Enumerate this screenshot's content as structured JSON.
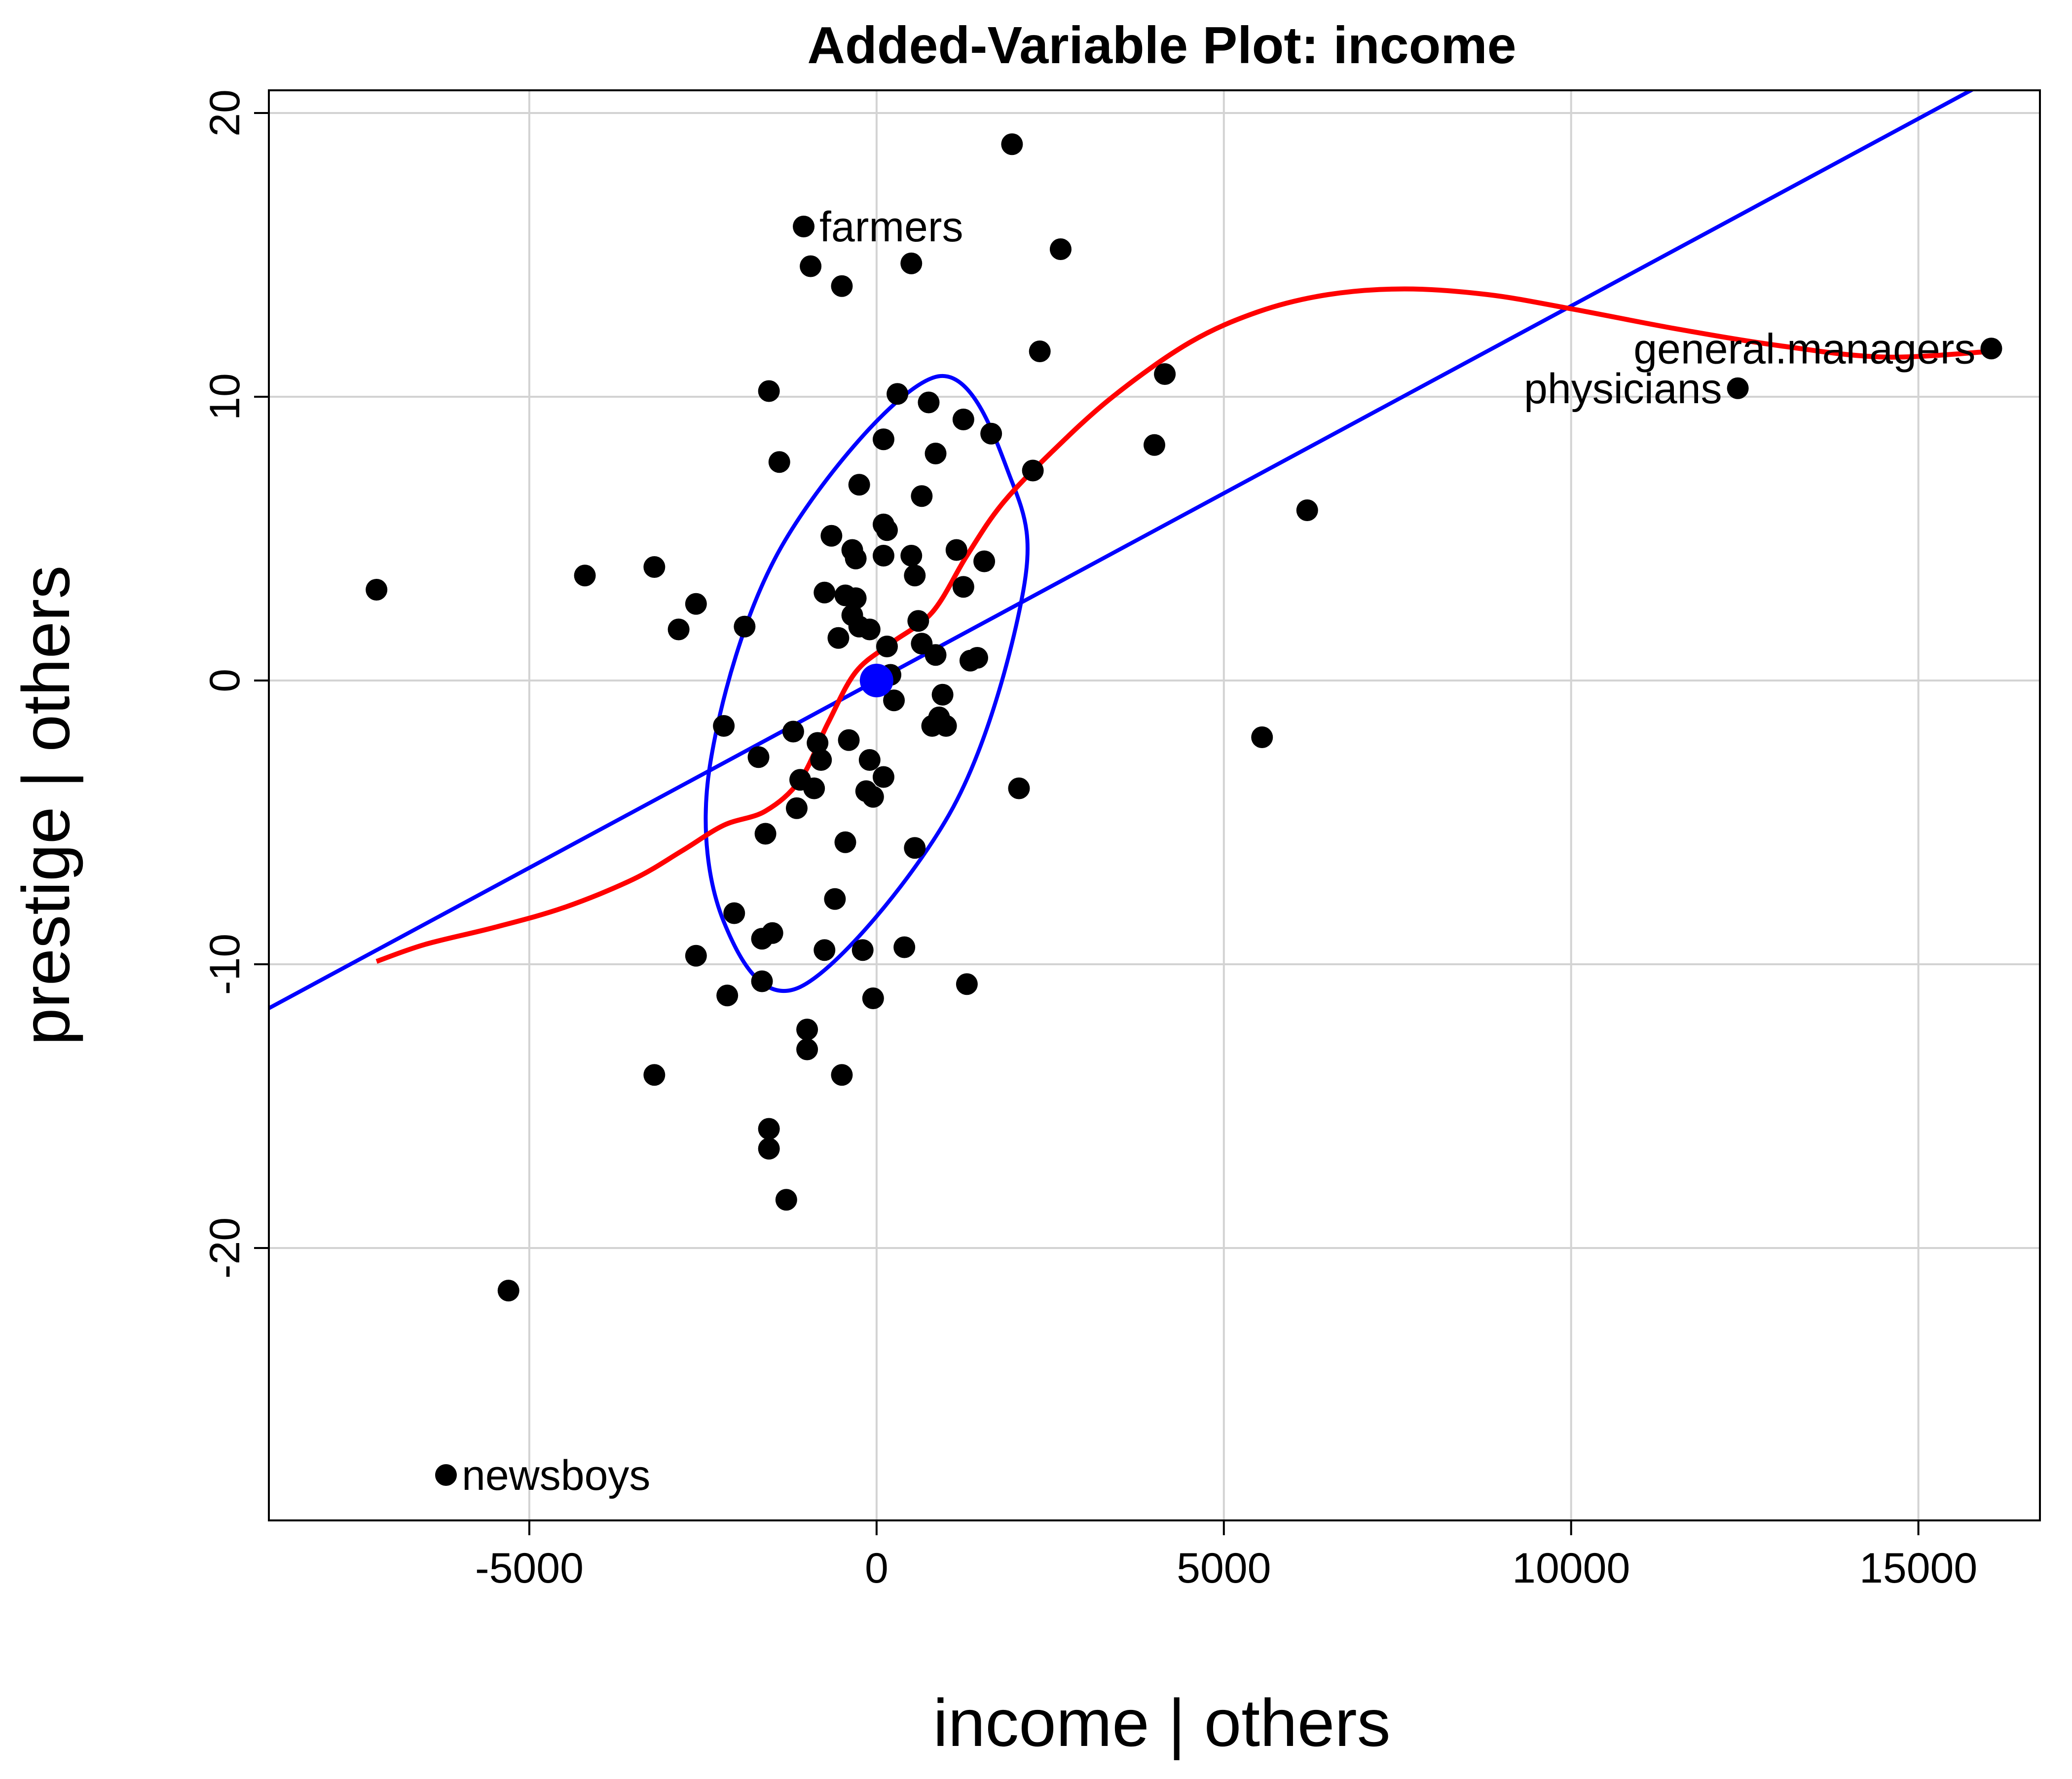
{
  "chart_data": {
    "type": "scatter",
    "title": "Added-Variable Plot: income",
    "xlabel": "income | others",
    "ylabel": "prestige  | others",
    "xlim": [
      -8750,
      16750
    ],
    "ylim": [
      -29.6,
      20.8
    ],
    "xticks": [
      -5000,
      0,
      5000,
      10000,
      15000
    ],
    "xtick_labels": [
      "-5000",
      "0",
      "5000",
      "10000",
      "15000"
    ],
    "yticks": [
      -20,
      -10,
      0,
      10,
      20
    ],
    "ytick_labels": [
      "-20",
      "-10",
      "0",
      "10",
      "20"
    ],
    "grid": true,
    "legend": "none",
    "colors": {
      "points": "#000000",
      "regression_line": "#0000ff",
      "smoother": "#ff0000",
      "ellipse": "#0000ff",
      "center": "#0000ff",
      "grid": "#d3d3d3"
    },
    "points": [
      {
        "x": -7200,
        "y": 3.2
      },
      {
        "x": -6200,
        "y": -28.0,
        "label": "newsboys"
      },
      {
        "x": -5300,
        "y": -21.5
      },
      {
        "x": -4200,
        "y": 3.7
      },
      {
        "x": -3200,
        "y": 4.0
      },
      {
        "x": -3200,
        "y": -13.9
      },
      {
        "x": -2850,
        "y": 1.8
      },
      {
        "x": -2600,
        "y": 2.7
      },
      {
        "x": -2600,
        "y": -9.7
      },
      {
        "x": -2200,
        "y": -1.6
      },
      {
        "x": -2150,
        "y": -11.1
      },
      {
        "x": -2050,
        "y": -8.2
      },
      {
        "x": -1900,
        "y": 1.9
      },
      {
        "x": -1700,
        "y": -2.7
      },
      {
        "x": -1650,
        "y": -9.1
      },
      {
        "x": -1650,
        "y": -10.6
      },
      {
        "x": -1600,
        "y": -5.4
      },
      {
        "x": -1550,
        "y": 10.2
      },
      {
        "x": -1550,
        "y": -15.8
      },
      {
        "x": -1550,
        "y": -16.5
      },
      {
        "x": -1500,
        "y": -8.9
      },
      {
        "x": -1400,
        "y": 7.7
      },
      {
        "x": -1300,
        "y": -18.3
      },
      {
        "x": -1200,
        "y": -1.8
      },
      {
        "x": -1150,
        "y": -4.5
      },
      {
        "x": -1100,
        "y": -3.5
      },
      {
        "x": -1050,
        "y": 16.0,
        "label": "farmers"
      },
      {
        "x": -1000,
        "y": -12.3
      },
      {
        "x": -1000,
        "y": -13.0
      },
      {
        "x": -950,
        "y": 14.6
      },
      {
        "x": -900,
        "y": -3.8
      },
      {
        "x": -850,
        "y": -2.2
      },
      {
        "x": -800,
        "y": -2.8
      },
      {
        "x": -750,
        "y": 3.1
      },
      {
        "x": -750,
        "y": -9.5
      },
      {
        "x": -650,
        "y": 5.1
      },
      {
        "x": -600,
        "y": -7.7
      },
      {
        "x": -550,
        "y": 1.5
      },
      {
        "x": -500,
        "y": 13.9
      },
      {
        "x": -500,
        "y": -13.9
      },
      {
        "x": -450,
        "y": -5.7
      },
      {
        "x": -450,
        "y": 3.0
      },
      {
        "x": -400,
        "y": -2.1
      },
      {
        "x": -350,
        "y": 4.6
      },
      {
        "x": -350,
        "y": 2.3
      },
      {
        "x": -300,
        "y": 4.3
      },
      {
        "x": -300,
        "y": 2.9
      },
      {
        "x": -250,
        "y": 6.9
      },
      {
        "x": -250,
        "y": 1.9
      },
      {
        "x": -200,
        "y": -9.5
      },
      {
        "x": -150,
        "y": -3.9
      },
      {
        "x": -100,
        "y": -2.8
      },
      {
        "x": -100,
        "y": 1.8
      },
      {
        "x": -50,
        "y": -11.2
      },
      {
        "x": -50,
        "y": -4.1
      },
      {
        "x": 100,
        "y": 8.5
      },
      {
        "x": 100,
        "y": 5.5
      },
      {
        "x": 100,
        "y": 4.4
      },
      {
        "x": 100,
        "y": -3.4
      },
      {
        "x": 150,
        "y": 5.3
      },
      {
        "x": 150,
        "y": 1.2
      },
      {
        "x": 200,
        "y": 0.2
      },
      {
        "x": 250,
        "y": -0.7
      },
      {
        "x": 300,
        "y": 10.1
      },
      {
        "x": 400,
        "y": -9.4
      },
      {
        "x": 500,
        "y": 14.7
      },
      {
        "x": 500,
        "y": 4.4
      },
      {
        "x": 550,
        "y": 3.7
      },
      {
        "x": 550,
        "y": -5.9
      },
      {
        "x": 600,
        "y": 2.1
      },
      {
        "x": 650,
        "y": 6.5
      },
      {
        "x": 650,
        "y": 1.3
      },
      {
        "x": 750,
        "y": 9.8
      },
      {
        "x": 800,
        "y": -1.6
      },
      {
        "x": 850,
        "y": 8.0
      },
      {
        "x": 850,
        "y": 0.9
      },
      {
        "x": 900,
        "y": -1.3
      },
      {
        "x": 950,
        "y": -0.5
      },
      {
        "x": 1000,
        "y": -1.6
      },
      {
        "x": 1150,
        "y": 4.6
      },
      {
        "x": 1250,
        "y": 9.2
      },
      {
        "x": 1250,
        "y": 3.3
      },
      {
        "x": 1300,
        "y": -10.7
      },
      {
        "x": 1350,
        "y": 0.7
      },
      {
        "x": 1450,
        "y": 0.8
      },
      {
        "x": 1550,
        "y": 4.2
      },
      {
        "x": 1650,
        "y": 8.7
      },
      {
        "x": 1950,
        "y": 18.9
      },
      {
        "x": 2050,
        "y": -3.8
      },
      {
        "x": 2250,
        "y": 7.4
      },
      {
        "x": 2350,
        "y": 11.6
      },
      {
        "x": 2650,
        "y": 15.2
      },
      {
        "x": 4000,
        "y": 8.3
      },
      {
        "x": 4150,
        "y": 10.8
      },
      {
        "x": 5550,
        "y": -2.0
      },
      {
        "x": 6200,
        "y": 6.0
      },
      {
        "x": 12400,
        "y": 10.3,
        "label": "physicians"
      },
      {
        "x": 16050,
        "y": 11.7,
        "label": "general.managers"
      }
    ],
    "center": {
      "x": 0,
      "y": 0
    },
    "regression_line": {
      "slope": 0.00132,
      "intercept": 0.0
    },
    "smoother": [
      {
        "x": -7200,
        "y": -9.9
      },
      {
        "x": -6500,
        "y": -9.3
      },
      {
        "x": -5500,
        "y": -8.7
      },
      {
        "x": -4500,
        "y": -8.0
      },
      {
        "x": -3500,
        "y": -7.0
      },
      {
        "x": -2800,
        "y": -6.0
      },
      {
        "x": -2200,
        "y": -5.1
      },
      {
        "x": -1600,
        "y": -4.6
      },
      {
        "x": -1100,
        "y": -3.5
      },
      {
        "x": -700,
        "y": -1.5
      },
      {
        "x": -300,
        "y": 0.3
      },
      {
        "x": 200,
        "y": 1.3
      },
      {
        "x": 800,
        "y": 2.4
      },
      {
        "x": 1300,
        "y": 4.4
      },
      {
        "x": 1800,
        "y": 6.2
      },
      {
        "x": 2500,
        "y": 8.0
      },
      {
        "x": 3400,
        "y": 10.0
      },
      {
        "x": 4500,
        "y": 11.9
      },
      {
        "x": 5500,
        "y": 13.0
      },
      {
        "x": 6500,
        "y": 13.6
      },
      {
        "x": 7600,
        "y": 13.8
      },
      {
        "x": 8800,
        "y": 13.6
      },
      {
        "x": 10000,
        "y": 13.1
      },
      {
        "x": 11500,
        "y": 12.4
      },
      {
        "x": 13000,
        "y": 11.8
      },
      {
        "x": 14500,
        "y": 11.4
      },
      {
        "x": 16050,
        "y": 11.6
      }
    ],
    "ellipse": {
      "cx": -150,
      "cy": -0.1,
      "points": [
        {
          "x": 1950,
          "y": 7.0
        },
        {
          "x": 850,
          "y": 10.7
        },
        {
          "x": -1350,
          "y": 4.8
        },
        {
          "x": -2400,
          "y": -3.0
        },
        {
          "x": -2200,
          "y": -8.5
        },
        {
          "x": -1100,
          "y": -10.8
        },
        {
          "x": 1050,
          "y": -4.7
        },
        {
          "x": 2100,
          "y": 3.0
        }
      ]
    }
  }
}
